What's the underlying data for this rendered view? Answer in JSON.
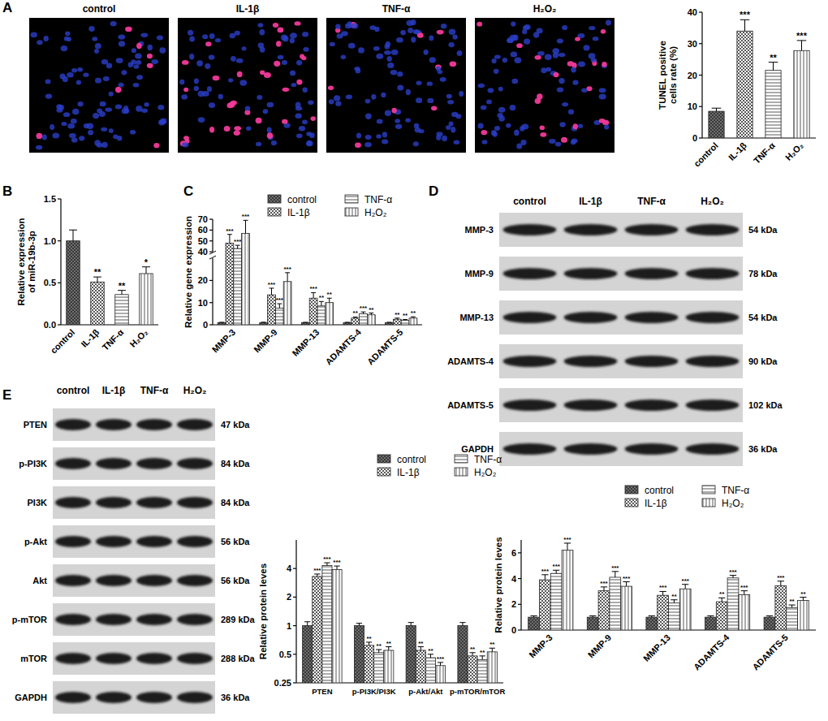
{
  "panel_labels": [
    "A",
    "B",
    "C",
    "D",
    "E"
  ],
  "micrographs": {
    "labels": [
      "control",
      "IL-1β",
      "TNF-α",
      "H₂O₂"
    ]
  },
  "blots": {
    "D": {
      "lanes": [
        "control",
        "IL-1β",
        "TNF-α",
        "H₂O₂"
      ],
      "rows": [
        {
          "protein": "MMP-3",
          "size": "54 kDa"
        },
        {
          "protein": "MMP-9",
          "size": "78 kDa"
        },
        {
          "protein": "MMP-13",
          "size": "54 kDa"
        },
        {
          "protein": "ADAMTS-4",
          "size": "90 kDa"
        },
        {
          "protein": "ADAMTS-5",
          "size": "102 kDa"
        },
        {
          "protein": "GAPDH",
          "size": "36 kDa"
        }
      ]
    },
    "E": {
      "lanes": [
        "control",
        "IL-1β",
        "TNF-α",
        "H₂O₂"
      ],
      "rows": [
        {
          "protein": "PTEN",
          "size": "47 kDa"
        },
        {
          "protein": "p-PI3K",
          "size": "84 kDa"
        },
        {
          "protein": "PI3K",
          "size": "84 kDa"
        },
        {
          "protein": "p-Akt",
          "size": "56 kDa"
        },
        {
          "protein": "Akt",
          "size": "56 kDa"
        },
        {
          "protein": "p-mTOR",
          "size": "289 kDa"
        },
        {
          "protein": "mTOR",
          "size": "288 kDa"
        },
        {
          "protein": "GAPDH",
          "size": "36 kDa"
        }
      ]
    }
  },
  "chart_data": [
    {
      "type": "bar",
      "ylabel": "TUNEL positive cells rate (%)",
      "categories": [
        "control",
        "IL-1β",
        "TNF-α",
        "H₂O₂"
      ],
      "values": [
        8.5,
        34,
        21.5,
        27.8
      ],
      "errors": [
        1,
        3.6,
        2.6,
        3.2
      ],
      "significance": [
        null,
        "***",
        "**",
        "***"
      ],
      "colors": [
        "#6e6e6e",
        "#ffffff",
        "#ffffff",
        "#ffffff"
      ],
      "ylim": [
        0,
        40
      ],
      "yticks": [
        0,
        10,
        20,
        30,
        40
      ],
      "grid": false
    },
    {
      "type": "bar",
      "ylabel": "Relative expression of miR-19b-3p",
      "categories": [
        "control",
        "IL-1β",
        "TNF-α",
        "H₂O₂"
      ],
      "values": [
        1.0,
        0.51,
        0.36,
        0.61
      ],
      "errors": [
        0.13,
        0.06,
        0.05,
        0.08
      ],
      "significance": [
        null,
        "**",
        "**",
        "*"
      ],
      "colors": [
        "#6e6e6e",
        "#ffffff",
        "#ffffff",
        "#ffffff"
      ],
      "ylim": [
        0,
        1.5
      ],
      "yticks": [
        {
          "value": 0,
          "label": "0.0"
        },
        0.5,
        {
          "value": 1,
          "label": "1.0"
        },
        1.5
      ],
      "grid": false
    },
    {
      "type": "bar",
      "ylabel": "Relative gene expression",
      "categories": [
        "MMP-3",
        "MMP-9",
        "MMP-13",
        "ADAMTS-4",
        "ADAMTS-5"
      ],
      "ylim": [
        0,
        70
      ],
      "yticks": [
        0,
        10,
        20,
        40,
        50,
        60,
        70
      ],
      "y_break": [
        30,
        40
      ],
      "grid": false,
      "legend": "top right",
      "series": [
        {
          "name": "control",
          "color": "#6e6e6e",
          "values": [
            1,
            1,
            1,
            1,
            1
          ],
          "errors": [
            0.1,
            0.15,
            0.1,
            0.1,
            0.1
          ],
          "significance": [
            null,
            null,
            null,
            null,
            null
          ]
        },
        {
          "name": "IL-1β",
          "color": "#ffffff",
          "values": [
            48,
            13.5,
            12,
            3,
            2.5
          ],
          "errors": [
            8,
            3,
            2.5,
            0.5,
            0.5
          ],
          "significance": [
            "***",
            "***",
            "***",
            "**",
            "**"
          ]
        },
        {
          "name": "TNF-α",
          "color": "#ffffff",
          "values": [
            43,
            7.5,
            8.5,
            5,
            2
          ],
          "errors": [
            3,
            2,
            2,
            0.8,
            0.4
          ],
          "significance": [
            "***",
            "***",
            "**",
            "***",
            "**"
          ]
        },
        {
          "name": "H₂O₂",
          "color": "#ffffff",
          "values": [
            57,
            19.5,
            10,
            4.5,
            3
          ],
          "errors": [
            12,
            4,
            2,
            0.8,
            0.6
          ],
          "significance": [
            "***",
            "***",
            "**",
            "**",
            "**"
          ]
        }
      ]
    },
    {
      "type": "bar",
      "ylabel": "Relative protein leves",
      "categories": [
        "MMP-3",
        "MMP-9",
        "MMP-13",
        "ADAMTS-4",
        "ADAMTS-5"
      ],
      "ylim": [
        0,
        7
      ],
      "yticks": [
        0,
        2,
        4,
        6
      ],
      "grid": false,
      "legend": "top right",
      "series": [
        {
          "name": "control",
          "color": "#6e6e6e",
          "values": [
            1,
            1,
            1,
            1,
            1
          ],
          "errors": [
            0.1,
            0.1,
            0.1,
            0.1,
            0.1
          ],
          "significance": [
            null,
            null,
            null,
            null,
            null
          ]
        },
        {
          "name": "IL-1β",
          "color": "#ffffff",
          "values": [
            3.9,
            3.05,
            2.7,
            2.2,
            3.45
          ],
          "errors": [
            0.4,
            0.3,
            0.3,
            0.3,
            0.35
          ],
          "significance": [
            "***",
            "***",
            "***",
            "**",
            "***"
          ]
        },
        {
          "name": "TNF-α",
          "color": "#ffffff",
          "values": [
            4.4,
            4.1,
            2.1,
            4.05,
            1.75
          ],
          "errors": [
            0.25,
            0.45,
            0.25,
            0.2,
            0.2
          ],
          "significance": [
            "***",
            "***",
            "**",
            "***",
            "**"
          ]
        },
        {
          "name": "H₂O₂",
          "color": "#ffffff",
          "values": [
            6.2,
            3.4,
            3.2,
            2.75,
            2.3
          ],
          "errors": [
            0.55,
            0.35,
            0.35,
            0.3,
            0.25
          ],
          "significance": [
            "***",
            "***",
            "***",
            "***",
            "**"
          ]
        }
      ]
    },
    {
      "type": "bar",
      "ylabel": "Relative protein leves",
      "categories": [
        "PTEN",
        "p-PI3K/PI3K",
        "p-Akt/Akt",
        "p-mTOR/mTOR"
      ],
      "log": "y",
      "ylim": [
        0.25,
        8
      ],
      "yticks": [
        0.25,
        0.5,
        1,
        2,
        4
      ],
      "grid": false,
      "legend": "top right",
      "series": [
        {
          "name": "control",
          "color": "#6e6e6e",
          "values": [
            1,
            1,
            1,
            1
          ],
          "errors": [
            0.1,
            0.06,
            0.08,
            0.08
          ],
          "significance": [
            null,
            null,
            null,
            null
          ]
        },
        {
          "name": "IL-1β",
          "color": "#ffffff",
          "values": [
            3.3,
            0.62,
            0.55,
            0.48
          ],
          "errors": [
            0.2,
            0.05,
            0.05,
            0.04
          ],
          "significance": [
            "***",
            "**",
            "**",
            "**"
          ]
        },
        {
          "name": "TNF-α",
          "color": "#ffffff",
          "values": [
            4.3,
            0.52,
            0.46,
            0.44
          ],
          "errors": [
            0.3,
            0.04,
            0.04,
            0.04
          ],
          "significance": [
            "***",
            "**",
            "**",
            "**"
          ]
        },
        {
          "name": "H₂O₂",
          "color": "#ffffff",
          "values": [
            3.9,
            0.55,
            0.38,
            0.53
          ],
          "errors": [
            0.35,
            0.05,
            0.03,
            0.05
          ],
          "significance": [
            "***",
            "**",
            "***",
            "**"
          ]
        }
      ]
    }
  ]
}
